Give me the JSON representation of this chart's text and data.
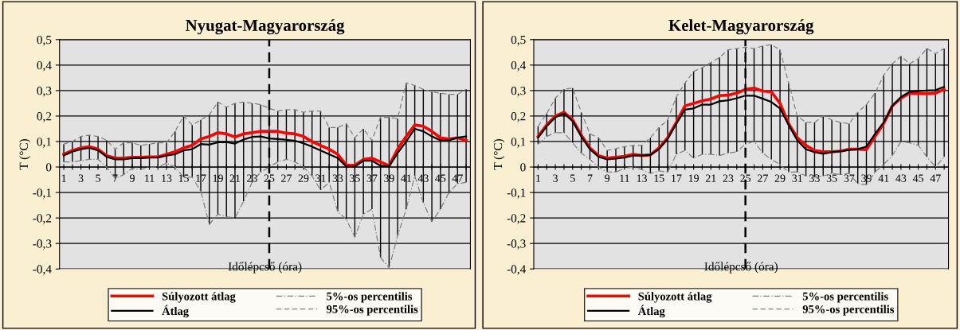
{
  "chart_data": [
    {
      "type": "line",
      "title": "Nyugat-Magyarország",
      "xlabel": "Időlépcső (óra)",
      "ylabel": "T (°C)",
      "x": [
        1,
        2,
        3,
        4,
        5,
        6,
        7,
        8,
        9,
        10,
        11,
        12,
        13,
        14,
        15,
        16,
        17,
        18,
        19,
        20,
        21,
        22,
        23,
        24,
        25,
        26,
        27,
        28,
        29,
        30,
        31,
        32,
        33,
        34,
        35,
        36,
        37,
        38,
        39,
        40,
        41,
        42,
        43,
        44,
        45,
        46,
        47,
        48
      ],
      "xlim": [
        0.5,
        48.5
      ],
      "xticks": [
        1,
        {
          "value": 2,
          "label": null
        },
        3,
        {
          "value": 4,
          "label": null
        },
        5,
        {
          "value": 6,
          "label": null
        },
        7,
        {
          "value": 8,
          "label": null
        },
        9,
        {
          "value": 10,
          "label": null
        },
        11,
        {
          "value": 12,
          "label": null
        },
        13,
        {
          "value": 14,
          "label": null
        },
        15,
        {
          "value": 16,
          "label": null
        },
        17,
        {
          "value": 18,
          "label": null
        },
        19,
        {
          "value": 20,
          "label": null
        },
        21,
        {
          "value": 22,
          "label": null
        },
        23,
        {
          "value": 24,
          "label": null
        },
        25,
        {
          "value": 26,
          "label": null
        },
        27,
        {
          "value": 28,
          "label": null
        },
        29,
        {
          "value": 30,
          "label": null
        },
        31,
        {
          "value": 32,
          "label": null
        },
        33,
        {
          "value": 34,
          "label": null
        },
        35,
        {
          "value": 36,
          "label": null
        },
        37,
        {
          "value": 38,
          "label": null
        },
        39,
        {
          "value": 40,
          "label": null
        },
        41,
        {
          "value": 42,
          "label": null
        },
        43,
        {
          "value": 44,
          "label": null
        },
        45,
        {
          "value": 46,
          "label": null
        },
        47,
        {
          "value": 48,
          "label": null
        }
      ],
      "ylim": [
        -0.4,
        0.5
      ],
      "yticks": [
        {
          "value": -0.4,
          "label": "-0,4"
        },
        {
          "value": -0.3,
          "label": "-0,3"
        },
        {
          "value": -0.2,
          "label": "-0,2"
        },
        {
          "value": -0.1,
          "label": "-0,1"
        },
        0,
        {
          "value": 0.1,
          "label": "0,1"
        },
        {
          "value": 0.2,
          "label": "0,2"
        },
        {
          "value": 0.3,
          "label": "0,3"
        },
        {
          "value": 0.4,
          "label": "0,4"
        },
        {
          "value": 0.5,
          "label": "0,5"
        }
      ],
      "grid": "y",
      "legend": "bottom",
      "ref_lines": [
        {
          "axis": "x",
          "value": 25,
          "color": "#000000",
          "line_style": "dashed"
        }
      ],
      "series": [
        {
          "name": "Súlyozott átlag",
          "color": "#ff0000",
          "line_style": "solid",
          "values": [
            0.05,
            0.065,
            0.075,
            0.08,
            0.07,
            0.045,
            0.035,
            0.035,
            0.038,
            0.038,
            0.04,
            0.04,
            0.05,
            0.06,
            0.075,
            0.085,
            0.11,
            0.12,
            0.135,
            0.13,
            0.118,
            0.13,
            0.135,
            0.14,
            0.14,
            0.14,
            0.133,
            0.13,
            0.12,
            0.1,
            0.085,
            0.07,
            0.05,
            0.008,
            0.007,
            0.03,
            0.035,
            0.02,
            0.005,
            0.07,
            0.12,
            0.165,
            0.16,
            0.14,
            0.115,
            0.11,
            0.115,
            0.105
          ]
        },
        {
          "name": "Átlag",
          "color": "#000000",
          "line_style": "solid",
          "values": [
            0.045,
            0.06,
            0.07,
            0.075,
            0.065,
            0.04,
            0.03,
            0.03,
            0.035,
            0.035,
            0.037,
            0.037,
            0.045,
            0.05,
            0.065,
            0.07,
            0.09,
            0.088,
            0.097,
            0.098,
            0.092,
            0.108,
            0.118,
            0.12,
            0.112,
            0.11,
            0.107,
            0.103,
            0.093,
            0.08,
            0.065,
            0.05,
            0.035,
            0.002,
            0.001,
            0.025,
            0.025,
            0.005,
            0.002,
            0.055,
            0.1,
            0.15,
            0.14,
            0.12,
            0.105,
            0.105,
            0.115,
            0.12
          ],
          "errors": [
            [
              0.02,
              0.09
            ],
            [
              0.02,
              0.1
            ],
            [
              0.025,
              0.12
            ],
            [
              0.03,
              0.125
            ],
            [
              0.03,
              0.12
            ],
            [
              0.0,
              0.105
            ],
            [
              -0.045,
              0.07
            ],
            [
              -0.03,
              0.095
            ],
            [
              -0.005,
              0.095
            ],
            [
              -0.01,
              0.085
            ],
            [
              0.0,
              0.09
            ],
            [
              0.0,
              0.095
            ],
            [
              0.015,
              0.095
            ],
            [
              0.0,
              0.14
            ],
            [
              -0.04,
              0.2
            ],
            [
              -0.04,
              0.165
            ],
            [
              -0.095,
              0.185
            ],
            [
              -0.225,
              0.205
            ],
            [
              -0.185,
              0.255
            ],
            [
              -0.195,
              0.235
            ],
            [
              -0.2,
              0.25
            ],
            [
              -0.135,
              0.255
            ],
            [
              -0.06,
              0.25
            ],
            [
              -0.02,
              0.245
            ],
            [
              0.0,
              0.23
            ],
            [
              0.02,
              0.22
            ],
            [
              0.03,
              0.225
            ],
            [
              0.02,
              0.225
            ],
            [
              0.0,
              0.215
            ],
            [
              -0.035,
              0.22
            ],
            [
              -0.09,
              0.22
            ],
            [
              -0.06,
              0.155
            ],
            [
              -0.175,
              0.155
            ],
            [
              -0.205,
              0.17
            ],
            [
              -0.275,
              0.115
            ],
            [
              -0.185,
              0.15
            ],
            [
              -0.165,
              0.105
            ],
            [
              -0.355,
              0.195
            ],
            [
              -0.395,
              0.195
            ],
            [
              -0.27,
              0.19
            ],
            [
              -0.165,
              0.33
            ],
            [
              -0.035,
              0.32
            ],
            [
              -0.14,
              0.305
            ],
            [
              -0.215,
              0.295
            ],
            [
              -0.165,
              0.29
            ],
            [
              -0.1,
              0.285
            ],
            [
              -0.065,
              0.285
            ],
            [
              -0.06,
              0.305
            ]
          ]
        },
        {
          "name": "5%-os percentilis",
          "color": "#808080",
          "line_style": "dashdot",
          "values": [
            0.02,
            0.02,
            0.025,
            0.03,
            0.03,
            0.0,
            -0.045,
            -0.03,
            -0.005,
            -0.01,
            0.0,
            0.0,
            0.015,
            0.0,
            -0.04,
            -0.04,
            -0.095,
            -0.225,
            -0.185,
            -0.195,
            -0.2,
            -0.135,
            -0.06,
            -0.02,
            0.0,
            0.02,
            0.03,
            0.02,
            0.0,
            -0.035,
            -0.09,
            -0.06,
            -0.175,
            -0.205,
            -0.275,
            -0.185,
            -0.165,
            -0.355,
            -0.395,
            -0.27,
            -0.165,
            -0.035,
            -0.14,
            -0.215,
            -0.165,
            -0.1,
            -0.065,
            -0.06
          ]
        },
        {
          "name": "95%-os percentilis",
          "color": "#808080",
          "line_style": "dashed",
          "values": [
            0.09,
            0.1,
            0.12,
            0.125,
            0.12,
            0.105,
            0.07,
            0.095,
            0.095,
            0.085,
            0.09,
            0.095,
            0.095,
            0.14,
            0.2,
            0.165,
            0.185,
            0.205,
            0.255,
            0.235,
            0.25,
            0.255,
            0.25,
            0.245,
            0.23,
            0.22,
            0.225,
            0.225,
            0.215,
            0.22,
            0.22,
            0.155,
            0.155,
            0.17,
            0.115,
            0.15,
            0.105,
            0.195,
            0.195,
            0.19,
            0.33,
            0.32,
            0.305,
            0.295,
            0.29,
            0.285,
            0.285,
            0.305
          ]
        }
      ]
    },
    {
      "type": "line",
      "title": "Kelet-Magyarország",
      "xlabel": "Időlépcső (óra)",
      "ylabel": "T (°C)",
      "x": [
        1,
        2,
        3,
        4,
        5,
        6,
        7,
        8,
        9,
        10,
        11,
        12,
        13,
        14,
        15,
        16,
        17,
        18,
        19,
        20,
        21,
        22,
        23,
        24,
        25,
        26,
        27,
        28,
        29,
        30,
        31,
        32,
        33,
        34,
        35,
        36,
        37,
        38,
        39,
        40,
        41,
        42,
        43,
        44,
        45,
        46,
        47,
        48
      ],
      "xlim": [
        0.5,
        48.5
      ],
      "xticks": [
        1,
        {
          "value": 2,
          "label": null
        },
        3,
        {
          "value": 4,
          "label": null
        },
        5,
        {
          "value": 6,
          "label": null
        },
        7,
        {
          "value": 8,
          "label": null
        },
        9,
        {
          "value": 10,
          "label": null
        },
        11,
        {
          "value": 12,
          "label": null
        },
        13,
        {
          "value": 14,
          "label": null
        },
        15,
        {
          "value": 16,
          "label": null
        },
        17,
        {
          "value": 18,
          "label": null
        },
        19,
        {
          "value": 20,
          "label": null
        },
        21,
        {
          "value": 22,
          "label": null
        },
        23,
        {
          "value": 24,
          "label": null
        },
        25,
        {
          "value": 26,
          "label": null
        },
        27,
        {
          "value": 28,
          "label": null
        },
        29,
        {
          "value": 30,
          "label": null
        },
        31,
        {
          "value": 32,
          "label": null
        },
        33,
        {
          "value": 34,
          "label": null
        },
        35,
        {
          "value": 36,
          "label": null
        },
        37,
        {
          "value": 38,
          "label": null
        },
        39,
        {
          "value": 40,
          "label": null
        },
        41,
        {
          "value": 42,
          "label": null
        },
        43,
        {
          "value": 44,
          "label": null
        },
        45,
        {
          "value": 46,
          "label": null
        },
        47,
        {
          "value": 48,
          "label": null
        }
      ],
      "ylim": [
        -0.4,
        0.5
      ],
      "yticks": [
        {
          "value": -0.4,
          "label": "-0,4"
        },
        {
          "value": -0.3,
          "label": "-0,3"
        },
        {
          "value": -0.2,
          "label": "-0,2"
        },
        {
          "value": -0.1,
          "label": "-0,1"
        },
        0,
        {
          "value": 0.1,
          "label": "0,1"
        },
        {
          "value": 0.2,
          "label": "0,2"
        },
        {
          "value": 0.3,
          "label": "0,3"
        },
        {
          "value": 0.4,
          "label": "0,4"
        },
        {
          "value": 0.5,
          "label": "0,5"
        }
      ],
      "grid": "y",
      "legend": "bottom",
      "ref_lines": [
        {
          "axis": "x",
          "value": 25,
          "color": "#000000",
          "line_style": "dashed"
        }
      ],
      "series": [
        {
          "name": "Súlyozott átlag",
          "color": "#ff0000",
          "line_style": "solid",
          "values": [
            0.12,
            0.165,
            0.2,
            0.215,
            0.185,
            0.125,
            0.075,
            0.045,
            0.035,
            0.038,
            0.042,
            0.05,
            0.045,
            0.048,
            0.075,
            0.115,
            0.175,
            0.24,
            0.25,
            0.26,
            0.267,
            0.28,
            0.282,
            0.29,
            0.305,
            0.31,
            0.298,
            0.295,
            0.25,
            0.17,
            0.115,
            0.085,
            0.065,
            0.06,
            0.06,
            0.062,
            0.07,
            0.07,
            0.068,
            0.12,
            0.17,
            0.24,
            0.27,
            0.29,
            0.288,
            0.288,
            0.29,
            0.305
          ]
        },
        {
          "name": "Átlag",
          "color": "#000000",
          "line_style": "solid",
          "values": [
            0.115,
            0.16,
            0.195,
            0.21,
            0.18,
            0.12,
            0.07,
            0.04,
            0.03,
            0.033,
            0.037,
            0.045,
            0.045,
            0.047,
            0.07,
            0.11,
            0.17,
            0.225,
            0.23,
            0.245,
            0.245,
            0.258,
            0.262,
            0.27,
            0.28,
            0.28,
            0.268,
            0.255,
            0.23,
            0.165,
            0.105,
            0.07,
            0.058,
            0.052,
            0.058,
            0.062,
            0.067,
            0.07,
            0.08,
            0.13,
            0.175,
            0.24,
            0.275,
            0.295,
            0.298,
            0.3,
            0.302,
            0.315
          ],
          "errors": [
            [
              0.09,
              0.16
            ],
            [
              0.12,
              0.21
            ],
            [
              0.135,
              0.27
            ],
            [
              0.135,
              0.305
            ],
            [
              0.095,
              0.31
            ],
            [
              0.055,
              0.215
            ],
            [
              0.03,
              0.13
            ],
            [
              0.0,
              0.115
            ],
            [
              -0.02,
              0.065
            ],
            [
              -0.02,
              0.072
            ],
            [
              -0.005,
              0.08
            ],
            [
              0.0,
              0.085
            ],
            [
              -0.01,
              0.085
            ],
            [
              -0.025,
              0.115
            ],
            [
              -0.015,
              0.155
            ],
            [
              -0.02,
              0.185
            ],
            [
              0.05,
              0.275
            ],
            [
              0.065,
              0.33
            ],
            [
              0.035,
              0.375
            ],
            [
              0.05,
              0.39
            ],
            [
              0.05,
              0.41
            ],
            [
              0.045,
              0.43
            ],
            [
              0.055,
              0.46
            ],
            [
              0.06,
              0.465
            ],
            [
              0.09,
              0.47
            ],
            [
              0.1,
              0.465
            ],
            [
              0.055,
              0.475
            ],
            [
              0.03,
              0.48
            ],
            [
              0.01,
              0.46
            ],
            [
              -0.02,
              0.33
            ],
            [
              -0.02,
              0.2
            ],
            [
              -0.035,
              0.175
            ],
            [
              -0.04,
              0.175
            ],
            [
              -0.035,
              0.2
            ],
            [
              -0.025,
              0.185
            ],
            [
              -0.03,
              0.175
            ],
            [
              -0.025,
              0.17
            ],
            [
              -0.065,
              0.215
            ],
            [
              -0.07,
              0.245
            ],
            [
              -0.02,
              0.29
            ],
            [
              0.01,
              0.36
            ],
            [
              0.045,
              0.405
            ],
            [
              0.1,
              0.435
            ],
            [
              0.095,
              0.405
            ],
            [
              0.085,
              0.425
            ],
            [
              0.04,
              0.465
            ],
            [
              0.0,
              0.445
            ],
            [
              0.04,
              0.465
            ]
          ]
        },
        {
          "name": "5%-os percentilis",
          "color": "#808080",
          "line_style": "dashdot",
          "values": [
            0.09,
            0.12,
            0.135,
            0.135,
            0.095,
            0.055,
            0.03,
            0.0,
            -0.02,
            -0.02,
            -0.005,
            0.0,
            -0.01,
            -0.025,
            -0.015,
            -0.02,
            0.05,
            0.065,
            0.035,
            0.05,
            0.05,
            0.045,
            0.055,
            0.06,
            0.09,
            0.1,
            0.055,
            0.03,
            0.01,
            -0.02,
            -0.02,
            -0.035,
            -0.04,
            -0.035,
            -0.025,
            -0.03,
            -0.025,
            -0.065,
            -0.07,
            -0.02,
            0.01,
            0.045,
            0.1,
            0.095,
            0.085,
            0.04,
            0.0,
            0.04
          ]
        },
        {
          "name": "95%-os percentilis",
          "color": "#808080",
          "line_style": "dashed",
          "values": [
            0.16,
            0.21,
            0.27,
            0.305,
            0.31,
            0.215,
            0.13,
            0.115,
            0.065,
            0.072,
            0.08,
            0.085,
            0.085,
            0.115,
            0.155,
            0.185,
            0.275,
            0.33,
            0.375,
            0.39,
            0.41,
            0.43,
            0.46,
            0.465,
            0.47,
            0.465,
            0.475,
            0.48,
            0.46,
            0.33,
            0.2,
            0.175,
            0.175,
            0.2,
            0.185,
            0.175,
            0.17,
            0.215,
            0.245,
            0.29,
            0.36,
            0.405,
            0.435,
            0.405,
            0.425,
            0.465,
            0.445,
            0.465
          ]
        }
      ]
    }
  ]
}
